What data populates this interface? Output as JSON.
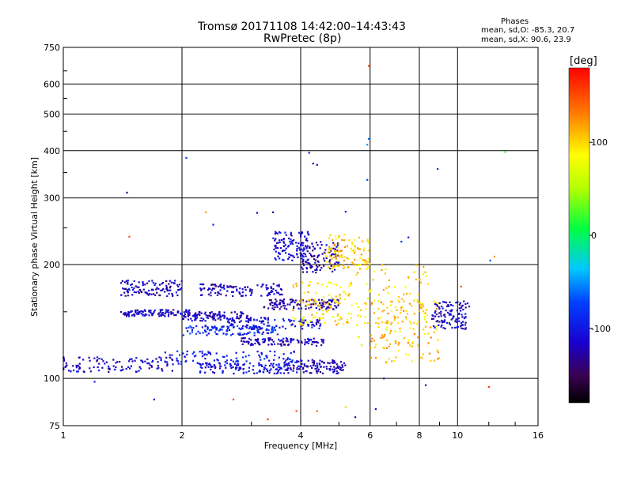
{
  "header": {
    "title_line1": "Tromsø 20171108 14:42:00–14:43:43",
    "title_line2": "RwPretec (8p)"
  },
  "stats": {
    "heading": "Phases",
    "o_mode": "mean, sd,O: -85.3, 20.7",
    "x_mode": "mean, sd,X:  90.6, 23.9"
  },
  "colorbar": {
    "unit": "[deg]",
    "range": [
      -180,
      180
    ],
    "ticks": [
      {
        "value": 100,
        "label": "100"
      },
      {
        "value": 0,
        "label": "0"
      },
      {
        "value": -100,
        "label": "-100"
      }
    ]
  },
  "chart_data": {
    "type": "scatter",
    "title": "Tromsø 20171108 14:42:00–14:43:43",
    "subtitle": "RwPretec (8p)",
    "xlabel": "Frequency [MHz]",
    "ylabel": "Stationary phase Virtual Height [km]",
    "xscale": "log",
    "yscale": "log",
    "xlim": [
      1,
      16
    ],
    "ylim": [
      75,
      750
    ],
    "xticks": [
      1,
      2,
      4,
      6,
      8,
      10,
      16
    ],
    "yticks": [
      75,
      100,
      200,
      300,
      400,
      500,
      600,
      750
    ],
    "grid": true,
    "color_by": "phase (deg)",
    "clusters": [
      {
        "x": [
          1.0,
          1.9
        ],
        "y": [
          104,
          114
        ],
        "phase": -115
      },
      {
        "x": [
          1.8,
          3.9
        ],
        "y": [
          108,
          118
        ],
        "phase": -95
      },
      {
        "x": [
          2.2,
          3.8
        ],
        "y": [
          103,
          110
        ],
        "phase": -105
      },
      {
        "x": [
          3.6,
          5.2
        ],
        "y": [
          103,
          112
        ],
        "phase": -120
      },
      {
        "x": [
          1.4,
          2.1
        ],
        "y": [
          146,
          152
        ],
        "phase": -115
      },
      {
        "x": [
          2.0,
          3.0
        ],
        "y": [
          142,
          150
        ],
        "phase": -120
      },
      {
        "x": [
          2.0,
          3.5
        ],
        "y": [
          130,
          138
        ],
        "phase": -90
      },
      {
        "x": [
          2.8,
          4.6
        ],
        "y": [
          122,
          128
        ],
        "phase": -118
      },
      {
        "x": [
          2.6,
          4.5
        ],
        "y": [
          135,
          145
        ],
        "phase": -105
      },
      {
        "x": [
          3.2,
          5.0
        ],
        "y": [
          152,
          162
        ],
        "phase": -125
      },
      {
        "x": [
          1.4,
          2.0
        ],
        "y": [
          165,
          182
        ],
        "phase": -120
      },
      {
        "x": [
          2.2,
          3.6
        ],
        "y": [
          165,
          178
        ],
        "phase": -118
      },
      {
        "x": [
          3.4,
          4.2
        ],
        "y": [
          205,
          245
        ],
        "phase": -110
      },
      {
        "x": [
          4.0,
          5.0
        ],
        "y": [
          190,
          230
        ],
        "phase": -125
      },
      {
        "x": [
          3.8,
          5.4
        ],
        "y": [
          138,
          180
        ],
        "phase": 100
      },
      {
        "x": [
          4.6,
          6.0
        ],
        "y": [
          195,
          240
        ],
        "phase": 105
      },
      {
        "x": [
          5.5,
          8.5
        ],
        "y": [
          120,
          200
        ],
        "phase": 95
      },
      {
        "x": [
          6.0,
          9.0
        ],
        "y": [
          110,
          160
        ],
        "phase": 110
      },
      {
        "x": [
          8.6,
          10.5
        ],
        "y": [
          135,
          160
        ],
        "phase": -115
      }
    ],
    "points": [
      {
        "x": 1.45,
        "y": 310,
        "phase": -140
      },
      {
        "x": 1.47,
        "y": 237,
        "phase": 150
      },
      {
        "x": 2.05,
        "y": 383,
        "phase": -80
      },
      {
        "x": 1.7,
        "y": 88,
        "phase": -120
      },
      {
        "x": 4.3,
        "y": 370,
        "phase": -120
      },
      {
        "x": 4.4,
        "y": 367,
        "phase": -120
      },
      {
        "x": 4.2,
        "y": 395,
        "phase": -100
      },
      {
        "x": 5.95,
        "y": 670,
        "phase": 150
      },
      {
        "x": 5.95,
        "y": 430,
        "phase": -60
      },
      {
        "x": 5.9,
        "y": 415,
        "phase": -50
      },
      {
        "x": 5.9,
        "y": 335,
        "phase": -70
      },
      {
        "x": 8.9,
        "y": 358,
        "phase": -80
      },
      {
        "x": 13.2,
        "y": 397,
        "phase": 20
      },
      {
        "x": 12.4,
        "y": 210,
        "phase": 120
      },
      {
        "x": 12.1,
        "y": 205,
        "phase": -70
      },
      {
        "x": 10.7,
        "y": 155,
        "phase": -110
      },
      {
        "x": 10.6,
        "y": 158,
        "phase": -105
      },
      {
        "x": 10.2,
        "y": 175,
        "phase": 150
      },
      {
        "x": 12.0,
        "y": 95,
        "phase": 160
      },
      {
        "x": 8.3,
        "y": 96,
        "phase": -100
      },
      {
        "x": 4.4,
        "y": 82,
        "phase": 140
      },
      {
        "x": 5.2,
        "y": 84,
        "phase": 100
      },
      {
        "x": 5.5,
        "y": 79,
        "phase": -120
      },
      {
        "x": 6.2,
        "y": 83,
        "phase": -110
      },
      {
        "x": 3.3,
        "y": 78,
        "phase": 160
      },
      {
        "x": 3.9,
        "y": 82,
        "phase": 150
      },
      {
        "x": 3.4,
        "y": 275,
        "phase": -130
      },
      {
        "x": 3.1,
        "y": 274,
        "phase": -120
      },
      {
        "x": 2.3,
        "y": 275,
        "phase": 120
      },
      {
        "x": 2.4,
        "y": 255,
        "phase": -80
      },
      {
        "x": 5.2,
        "y": 276,
        "phase": -90
      },
      {
        "x": 7.5,
        "y": 236,
        "phase": -100
      },
      {
        "x": 1.2,
        "y": 98,
        "phase": -90
      },
      {
        "x": 2.7,
        "y": 88,
        "phase": 150
      },
      {
        "x": 6.5,
        "y": 100,
        "phase": -125
      },
      {
        "x": 7.2,
        "y": 230,
        "phase": -80
      }
    ]
  }
}
